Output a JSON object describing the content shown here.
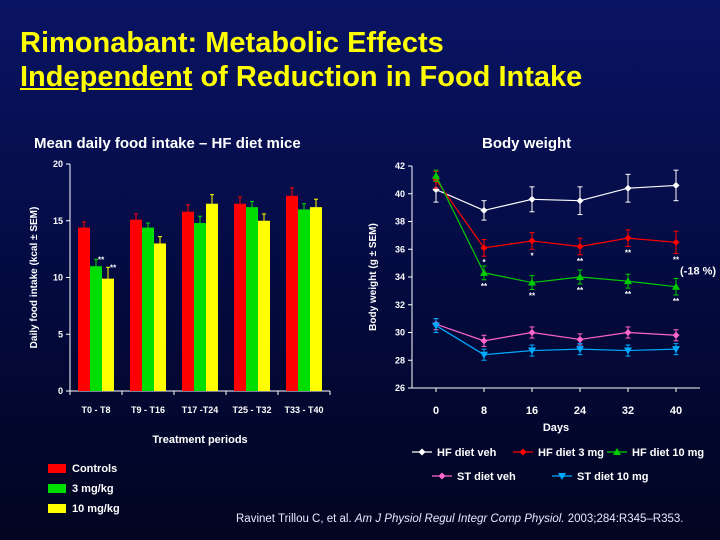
{
  "slide": {
    "title_line1": "Rimonabant: Metabolic Effects",
    "title_line2_underlined": "Independent",
    "title_line2_rest": " of Reduction in Food Intake",
    "citation_prefix": "Ravinet Trillou C, et al. ",
    "citation_journal": "Am J Physiol Regul Integr Comp Physiol.",
    "citation_suffix": " 2003;284:R345–R353."
  },
  "colors": {
    "title": "#ffff00",
    "controls": "#ff0000",
    "mg3": "#00dd00",
    "mg10": "#ffff00",
    "hf_veh": "#ffffff",
    "hf_3mg": "#ff0000",
    "hf_10mg": "#00cc00",
    "st_veh": "#ff66cc",
    "st_10mg": "#00aaff"
  },
  "chart_data": [
    {
      "type": "bar",
      "title": "Mean daily food intake – HF diet mice",
      "xlabel": "Treatment periods",
      "ylabel": "Daily food intake (kcal ± SEM)",
      "ylim": [
        0,
        20
      ],
      "yticks": [
        0,
        5,
        10,
        15,
        20
      ],
      "categories": [
        "T0 - T8",
        "T9 - T16",
        "T17 -T24",
        "T25 - T32",
        "T33 - T40"
      ],
      "series": [
        {
          "name": "Controls",
          "color": "#ff0000",
          "values": [
            14.4,
            15.1,
            15.8,
            16.5,
            17.2
          ],
          "errors": [
            0.5,
            0.5,
            0.6,
            0.6,
            0.7
          ],
          "sig": [
            "",
            "",
            "",
            "",
            ""
          ]
        },
        {
          "name": "3 mg/kg",
          "color": "#00dd00",
          "values": [
            11.0,
            14.4,
            14.8,
            16.2,
            16.0
          ],
          "errors": [
            0.6,
            0.4,
            0.6,
            0.5,
            0.5
          ],
          "sig": [
            "**",
            "",
            "",
            "",
            ""
          ]
        },
        {
          "name": "10 mg/kg",
          "color": "#ffff00",
          "values": [
            9.9,
            13.0,
            16.5,
            15.0,
            16.2
          ],
          "errors": [
            1.0,
            0.6,
            0.8,
            0.6,
            0.7
          ],
          "sig": [
            "**",
            "",
            "",
            "",
            ""
          ]
        }
      ],
      "legend_position": "bottom-left"
    },
    {
      "type": "line",
      "title": "Body weight",
      "xlabel": "Days",
      "ylabel": "Body weight (g ± SEM)",
      "x": [
        0,
        8,
        16,
        24,
        32,
        40
      ],
      "xlim": [
        -4,
        44
      ],
      "ylim": [
        26,
        42
      ],
      "yticks": [
        26,
        28,
        30,
        32,
        34,
        36,
        38,
        40,
        42
      ],
      "series": [
        {
          "name": "HF diet veh",
          "color": "#ffffff",
          "marker": "diamond",
          "values": [
            40.3,
            38.8,
            39.6,
            39.5,
            40.4,
            40.6
          ],
          "errors": [
            0.9,
            0.7,
            0.9,
            1.0,
            1.0,
            1.1
          ],
          "sig": [
            "",
            "",
            "",
            "",
            "",
            ""
          ]
        },
        {
          "name": "HF diet 3 mg",
          "color": "#ff0000",
          "marker": "diamond",
          "values": [
            41.0,
            36.1,
            36.6,
            36.2,
            36.8,
            36.5
          ],
          "errors": [
            0.6,
            0.6,
            0.6,
            0.6,
            0.6,
            0.8
          ],
          "sig": [
            "",
            "*",
            "*",
            "**",
            "**",
            "**"
          ]
        },
        {
          "name": "HF diet 10 mg",
          "color": "#00cc00",
          "marker": "triangle",
          "values": [
            41.3,
            34.3,
            33.6,
            34.0,
            33.7,
            33.3
          ],
          "errors": [
            0.4,
            0.5,
            0.5,
            0.5,
            0.5,
            0.6
          ],
          "sig": [
            "",
            "**",
            "**",
            "**",
            "**",
            "**"
          ]
        },
        {
          "name": "ST diet veh",
          "color": "#ff66cc",
          "marker": "diamond",
          "values": [
            30.6,
            29.4,
            30.0,
            29.5,
            30.0,
            29.8
          ],
          "errors": [
            0.4,
            0.4,
            0.4,
            0.4,
            0.4,
            0.4
          ],
          "sig": [
            "",
            "",
            "",
            "",
            "",
            ""
          ]
        },
        {
          "name": "ST diet 10 mg",
          "color": "#00aaff",
          "marker": "triangle-down",
          "values": [
            30.5,
            28.4,
            28.7,
            28.8,
            28.7,
            28.8
          ],
          "errors": [
            0.5,
            0.4,
            0.4,
            0.4,
            0.4,
            0.4
          ],
          "sig": [
            "",
            "",
            "",
            "",
            "",
            ""
          ]
        }
      ],
      "annotation": "(-18 %)",
      "legend_position": "bottom"
    }
  ]
}
